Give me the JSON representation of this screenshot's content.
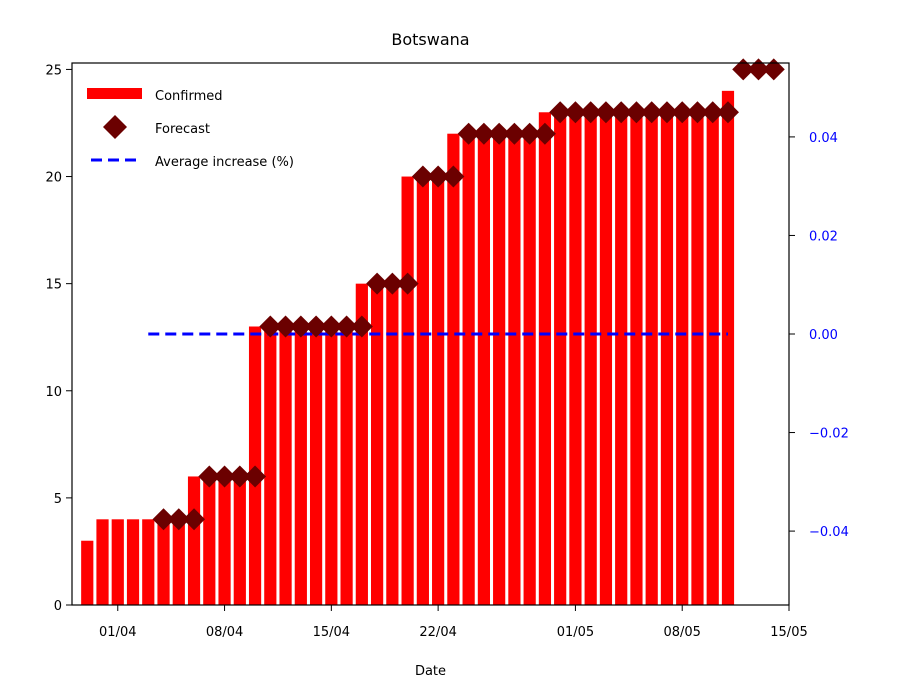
{
  "chart_data": {
    "type": "bar",
    "title": "Botswana",
    "xlabel": "Date",
    "ylabel": "",
    "ylim": [
      0,
      25.3
    ],
    "y2lim": [
      -0.055,
      0.055
    ],
    "x_range": [
      "2020-03-29",
      "2020-05-15"
    ],
    "x_ticks": [
      "2020-04-01",
      "2020-04-08",
      "2020-04-15",
      "2020-04-22",
      "2020-05-01",
      "2020-05-08",
      "2020-05-15"
    ],
    "x_tick_labels": [
      "01/04",
      "08/04",
      "15/04",
      "22/04",
      "01/05",
      "08/05",
      "15/05"
    ],
    "y_ticks": [
      0,
      5,
      10,
      15,
      20,
      25
    ],
    "y_tick_labels": [
      "0",
      "5",
      "10",
      "15",
      "20",
      "25"
    ],
    "y2_ticks": [
      -0.04,
      -0.02,
      0.0,
      0.02,
      0.04
    ],
    "y2_tick_labels": [
      "−0.04",
      "−0.02",
      "0.00",
      "0.02",
      "0.04"
    ],
    "legend": {
      "placement": "upper-left",
      "entries": [
        "Confirmed",
        "Forecast",
        "Average increase (%)"
      ]
    },
    "colors": {
      "confirmed": "#ff0000",
      "forecast": "#6b0000",
      "average": "#0000ff",
      "right_axis": "#0000ff"
    },
    "series": [
      {
        "name": "Confirmed",
        "type": "bar",
        "x": [
          "2020-03-30",
          "2020-03-31",
          "2020-04-01",
          "2020-04-02",
          "2020-04-03",
          "2020-04-04",
          "2020-04-05",
          "2020-04-06",
          "2020-04-07",
          "2020-04-08",
          "2020-04-09",
          "2020-04-10",
          "2020-04-11",
          "2020-04-12",
          "2020-04-13",
          "2020-04-14",
          "2020-04-15",
          "2020-04-16",
          "2020-04-17",
          "2020-04-18",
          "2020-04-19",
          "2020-04-20",
          "2020-04-21",
          "2020-04-22",
          "2020-04-23",
          "2020-04-24",
          "2020-04-25",
          "2020-04-26",
          "2020-04-27",
          "2020-04-28",
          "2020-04-29",
          "2020-04-30",
          "2020-05-01",
          "2020-05-02",
          "2020-05-03",
          "2020-05-04",
          "2020-05-05",
          "2020-05-06",
          "2020-05-07",
          "2020-05-08",
          "2020-05-09",
          "2020-05-10",
          "2020-05-11"
        ],
        "values": [
          3,
          4,
          4,
          4,
          4,
          4,
          4,
          6,
          6,
          6,
          6,
          13,
          13,
          13,
          13,
          13,
          13,
          13,
          15,
          15,
          15,
          20,
          20,
          20,
          22,
          22,
          22,
          22,
          22,
          22,
          23,
          23,
          23,
          23,
          23,
          23,
          23,
          23,
          23,
          23,
          23,
          23,
          24
        ]
      },
      {
        "name": "Forecast",
        "type": "scatter",
        "x": [
          "2020-04-04",
          "2020-04-05",
          "2020-04-06",
          "2020-04-07",
          "2020-04-08",
          "2020-04-09",
          "2020-04-10",
          "2020-04-11",
          "2020-04-12",
          "2020-04-13",
          "2020-04-14",
          "2020-04-15",
          "2020-04-16",
          "2020-04-17",
          "2020-04-18",
          "2020-04-19",
          "2020-04-20",
          "2020-04-21",
          "2020-04-22",
          "2020-04-23",
          "2020-04-24",
          "2020-04-25",
          "2020-04-26",
          "2020-04-27",
          "2020-04-28",
          "2020-04-29",
          "2020-04-30",
          "2020-05-01",
          "2020-05-02",
          "2020-05-03",
          "2020-05-04",
          "2020-05-05",
          "2020-05-06",
          "2020-05-07",
          "2020-05-08",
          "2020-05-09",
          "2020-05-10",
          "2020-05-11",
          "2020-05-12",
          "2020-05-13",
          "2020-05-14"
        ],
        "values": [
          4,
          4,
          4,
          6,
          6,
          6,
          6,
          13,
          13,
          13,
          13,
          13,
          13,
          13,
          15,
          15,
          15,
          20,
          20,
          20,
          22,
          22,
          22,
          22,
          22,
          22,
          23,
          23,
          23,
          23,
          23,
          23,
          23,
          23,
          23,
          23,
          23,
          23,
          25,
          25,
          25
        ]
      },
      {
        "name": "Average increase (%)",
        "type": "line",
        "axis": "right",
        "x": [
          "2020-04-03",
          "2020-05-11"
        ],
        "values": [
          0.0,
          0.0
        ]
      }
    ]
  }
}
